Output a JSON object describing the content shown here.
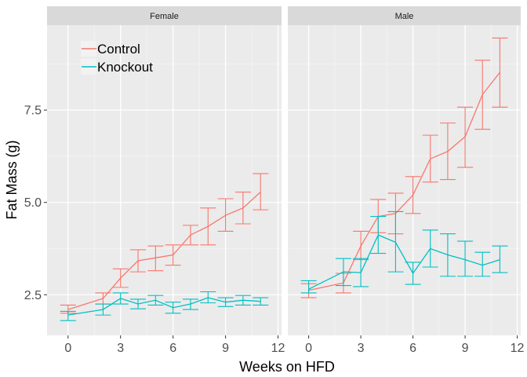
{
  "chart_data": {
    "type": "line",
    "xlabel": "Weeks on HFD",
    "ylabel": "Fat Mass (g)",
    "xlim": [
      -1.2,
      12.2
    ],
    "ylim": [
      1.4,
      9.8
    ],
    "x_ticks": [
      0,
      3,
      6,
      9,
      12
    ],
    "x_tick_labels": [
      "0",
      "3",
      "6",
      "9",
      "12"
    ],
    "y_ticks": [
      2.5,
      5.0,
      7.5
    ],
    "y_tick_labels": [
      "2.5",
      "5.0",
      "7.5"
    ],
    "grid": true,
    "legend_position": "top-left inside first panel",
    "legend": [
      {
        "name": "Control",
        "color": "#F8766D"
      },
      {
        "name": "Knockout",
        "color": "#00BFC4"
      }
    ],
    "panels": [
      {
        "title": "Female",
        "series": [
          {
            "name": "Control",
            "color": "#F8766D",
            "x": [
              0,
              2,
              3,
              4,
              5,
              6,
              7,
              8,
              9,
              10,
              11
            ],
            "y": [
              2.1,
              2.4,
              2.95,
              3.42,
              3.5,
              3.58,
              4.12,
              4.35,
              4.65,
              4.85,
              5.28
            ],
            "lower": [
              2.0,
              2.25,
              2.7,
              3.12,
              3.15,
              3.3,
              3.85,
              3.85,
              4.22,
              4.42,
              4.8
            ],
            "upper": [
              2.22,
              2.55,
              3.2,
              3.72,
              3.82,
              3.85,
              4.38,
              4.85,
              5.1,
              5.28,
              5.78
            ]
          },
          {
            "name": "Knockout",
            "color": "#00BFC4",
            "x": [
              0,
              2,
              3,
              4,
              5,
              6,
              7,
              8,
              9,
              10,
              11
            ],
            "y": [
              1.95,
              2.1,
              2.4,
              2.25,
              2.35,
              2.15,
              2.25,
              2.42,
              2.3,
              2.35,
              2.32
            ],
            "lower": [
              1.8,
              1.95,
              2.25,
              2.12,
              2.22,
              2.0,
              2.1,
              2.28,
              2.18,
              2.22,
              2.22
            ],
            "upper": [
              2.05,
              2.25,
              2.55,
              2.38,
              2.48,
              2.3,
              2.38,
              2.58,
              2.42,
              2.48,
              2.42
            ]
          }
        ]
      },
      {
        "title": "Male",
        "series": [
          {
            "name": "Control",
            "color": "#F8766D",
            "x": [
              0,
              2,
              3,
              4,
              5,
              6,
              7,
              8,
              9,
              10,
              11
            ],
            "y": [
              2.62,
              2.82,
              3.82,
              4.62,
              4.7,
              5.2,
              6.18,
              6.38,
              6.78,
              7.92,
              8.52
            ],
            "lower": [
              2.42,
              2.55,
              3.45,
              4.18,
              4.15,
              4.7,
              5.55,
              5.62,
              5.95,
              6.98,
              7.58
            ],
            "upper": [
              2.8,
              3.08,
              4.22,
              5.08,
              5.25,
              5.7,
              6.82,
              7.15,
              7.58,
              8.85,
              9.45
            ]
          },
          {
            "name": "Knockout",
            "color": "#00BFC4",
            "x": [
              0,
              2,
              3,
              4,
              5,
              6,
              7,
              8,
              9,
              10,
              11
            ],
            "y": [
              2.65,
              3.12,
              3.1,
              4.12,
              3.92,
              3.08,
              3.75,
              3.58,
              3.45,
              3.3,
              3.45
            ],
            "lower": [
              2.55,
              2.75,
              2.72,
              3.62,
              3.12,
              2.78,
              3.25,
              3.0,
              3.0,
              3.0,
              3.1
            ],
            "upper": [
              2.88,
              3.48,
              3.48,
              4.62,
              4.75,
              3.38,
              4.25,
              4.15,
              3.95,
              3.65,
              3.82
            ]
          }
        ]
      }
    ]
  }
}
